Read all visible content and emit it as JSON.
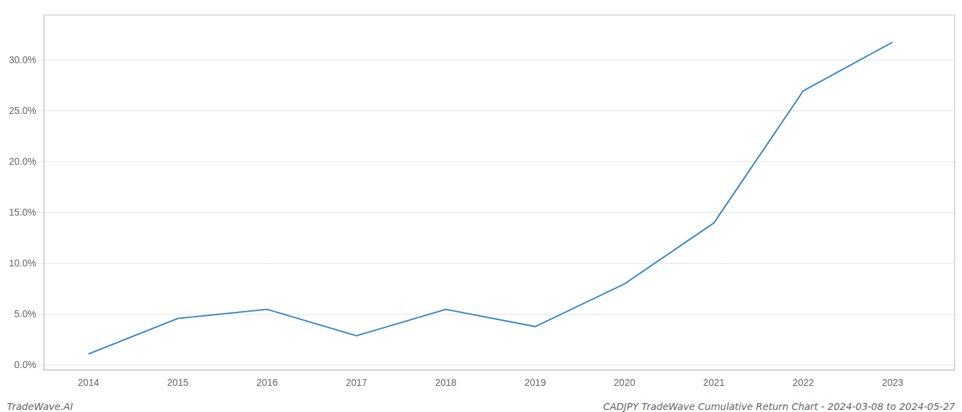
{
  "chart_data": {
    "type": "line",
    "x": [
      2014,
      2015,
      2016,
      2017,
      2018,
      2019,
      2020,
      2021,
      2022,
      2023
    ],
    "values": [
      0.011,
      0.046,
      0.055,
      0.029,
      0.055,
      0.038,
      0.08,
      0.14,
      0.27,
      0.318
    ],
    "color": "#3a86c8",
    "xlim": [
      2013.5,
      2023.7
    ],
    "xticks": [
      2014,
      2015,
      2016,
      2017,
      2018,
      2019,
      2020,
      2021,
      2022,
      2023
    ],
    "ylim": [
      -0.005,
      0.345
    ],
    "yticks": [
      {
        "value": 0.0,
        "label": "0.0%"
      },
      {
        "value": 0.05,
        "label": "5.0%"
      },
      {
        "value": 0.1,
        "label": "10.0%"
      },
      {
        "value": 0.15,
        "label": "15.0%"
      },
      {
        "value": 0.2,
        "label": "20.0%"
      },
      {
        "value": 0.25,
        "label": "25.0%"
      },
      {
        "value": 0.3,
        "label": "30.0%"
      }
    ],
    "grid": "y",
    "annotations": [
      "TradeWave.AI",
      "CADJPY TradeWave Cumulative Return Chart - 2024-03-08 to 2024-05-27"
    ]
  }
}
